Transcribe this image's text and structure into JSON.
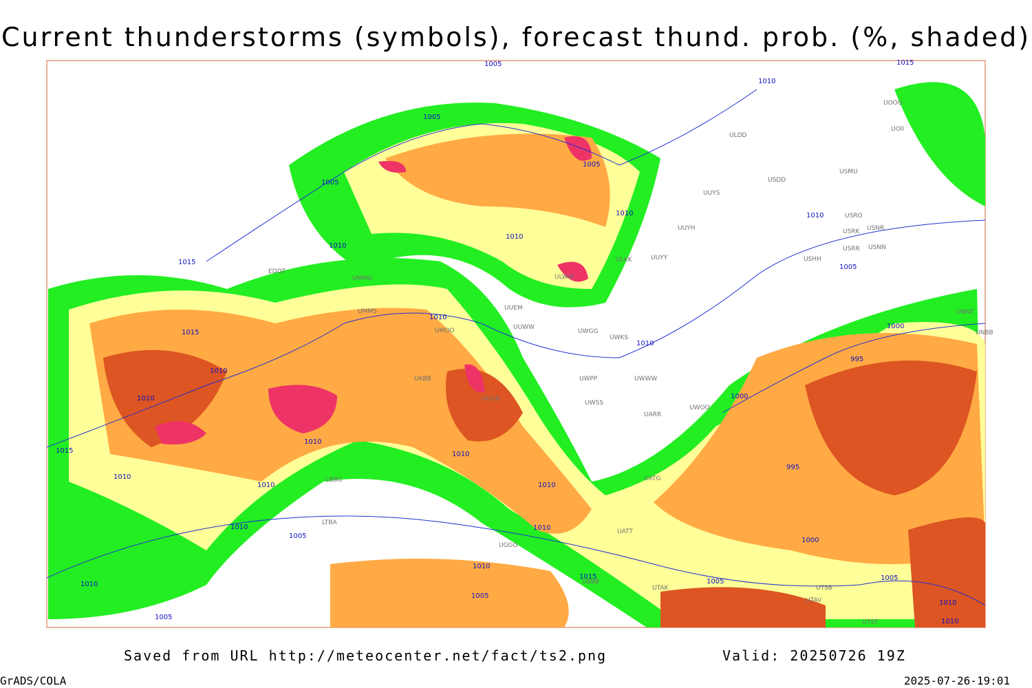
{
  "title": "Current thunderstorms (symbols), forecast thund. prob. (%, shaded)",
  "footer": {
    "source": "Saved from URL http://meteocenter.net/fact/ts2.png",
    "valid": "Valid: 20250726 19Z",
    "credit": "GrADS/COLA",
    "timestamp": "2025-07-26-19:01"
  },
  "stations": [
    "ULDD",
    "UUYS",
    "UUYH",
    "UUYY",
    "ULKK",
    "ULWW",
    "UUEM",
    "UUWW",
    "UWGG",
    "UWKS",
    "UWPP",
    "UWWW",
    "UWSS",
    "UARR",
    "UWOO",
    "USDD",
    "USRO",
    "USRK",
    "USNR",
    "USRR",
    "USNN",
    "USHH",
    "UNNT",
    "UNBB",
    "UOOO",
    "UOII",
    "USMU",
    "UATG",
    "UATT",
    "UTAK",
    "UTSB",
    "UTAV",
    "UTST",
    "EDDT",
    "UMMG",
    "UMMS",
    "UMOO",
    "UKBB",
    "UUOB",
    "LBBG",
    "LTBA",
    "UGGG",
    "UBBB"
  ],
  "isobars": [
    1005,
    1010,
    1015,
    1005,
    1005,
    1005,
    1010,
    1010,
    1010,
    1010,
    1015,
    1005,
    1010,
    1015,
    1010,
    1000,
    995,
    1010,
    1010,
    1000,
    1010,
    1015,
    1010,
    995,
    1010,
    1010,
    1010,
    1010,
    1005,
    1010,
    1000,
    1010,
    1015,
    1005,
    1010,
    1005,
    1005,
    1005,
    1010,
    1010
  ]
}
